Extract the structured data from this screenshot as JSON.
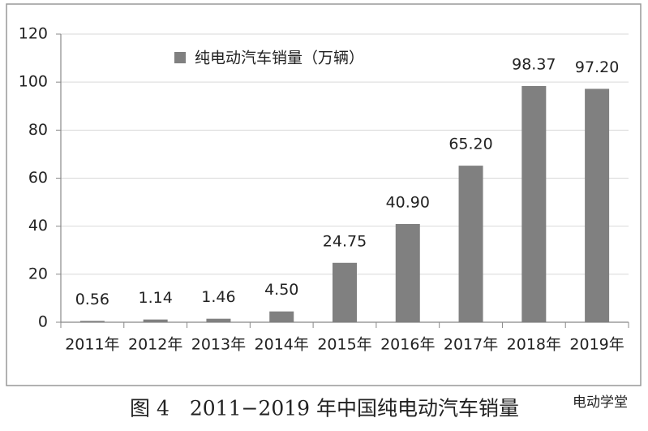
{
  "chart_data": {
    "type": "bar",
    "categories": [
      "2011年",
      "2012年",
      "2013年",
      "2014年",
      "2015年",
      "2016年",
      "2017年",
      "2018年",
      "2019年"
    ],
    "series": [
      {
        "name": "纯电动汽车销量（万辆）",
        "color": "#808080",
        "values": [
          0.56,
          1.14,
          1.46,
          4.5,
          24.75,
          40.9,
          65.2,
          98.37,
          97.2
        ],
        "value_labels": [
          "0.56",
          "1.14",
          "1.46",
          "4.50",
          "24.75",
          "40.90",
          "65.20",
          "98.37",
          "97.20"
        ]
      }
    ],
    "ylim": [
      0,
      120
    ],
    "yticks": [
      0,
      20,
      40,
      60,
      80,
      100,
      120
    ],
    "grid": true,
    "legend": "top"
  },
  "caption": "图 4　2011−2019 年中国纯电动汽车销量",
  "watermark": "电动学堂"
}
